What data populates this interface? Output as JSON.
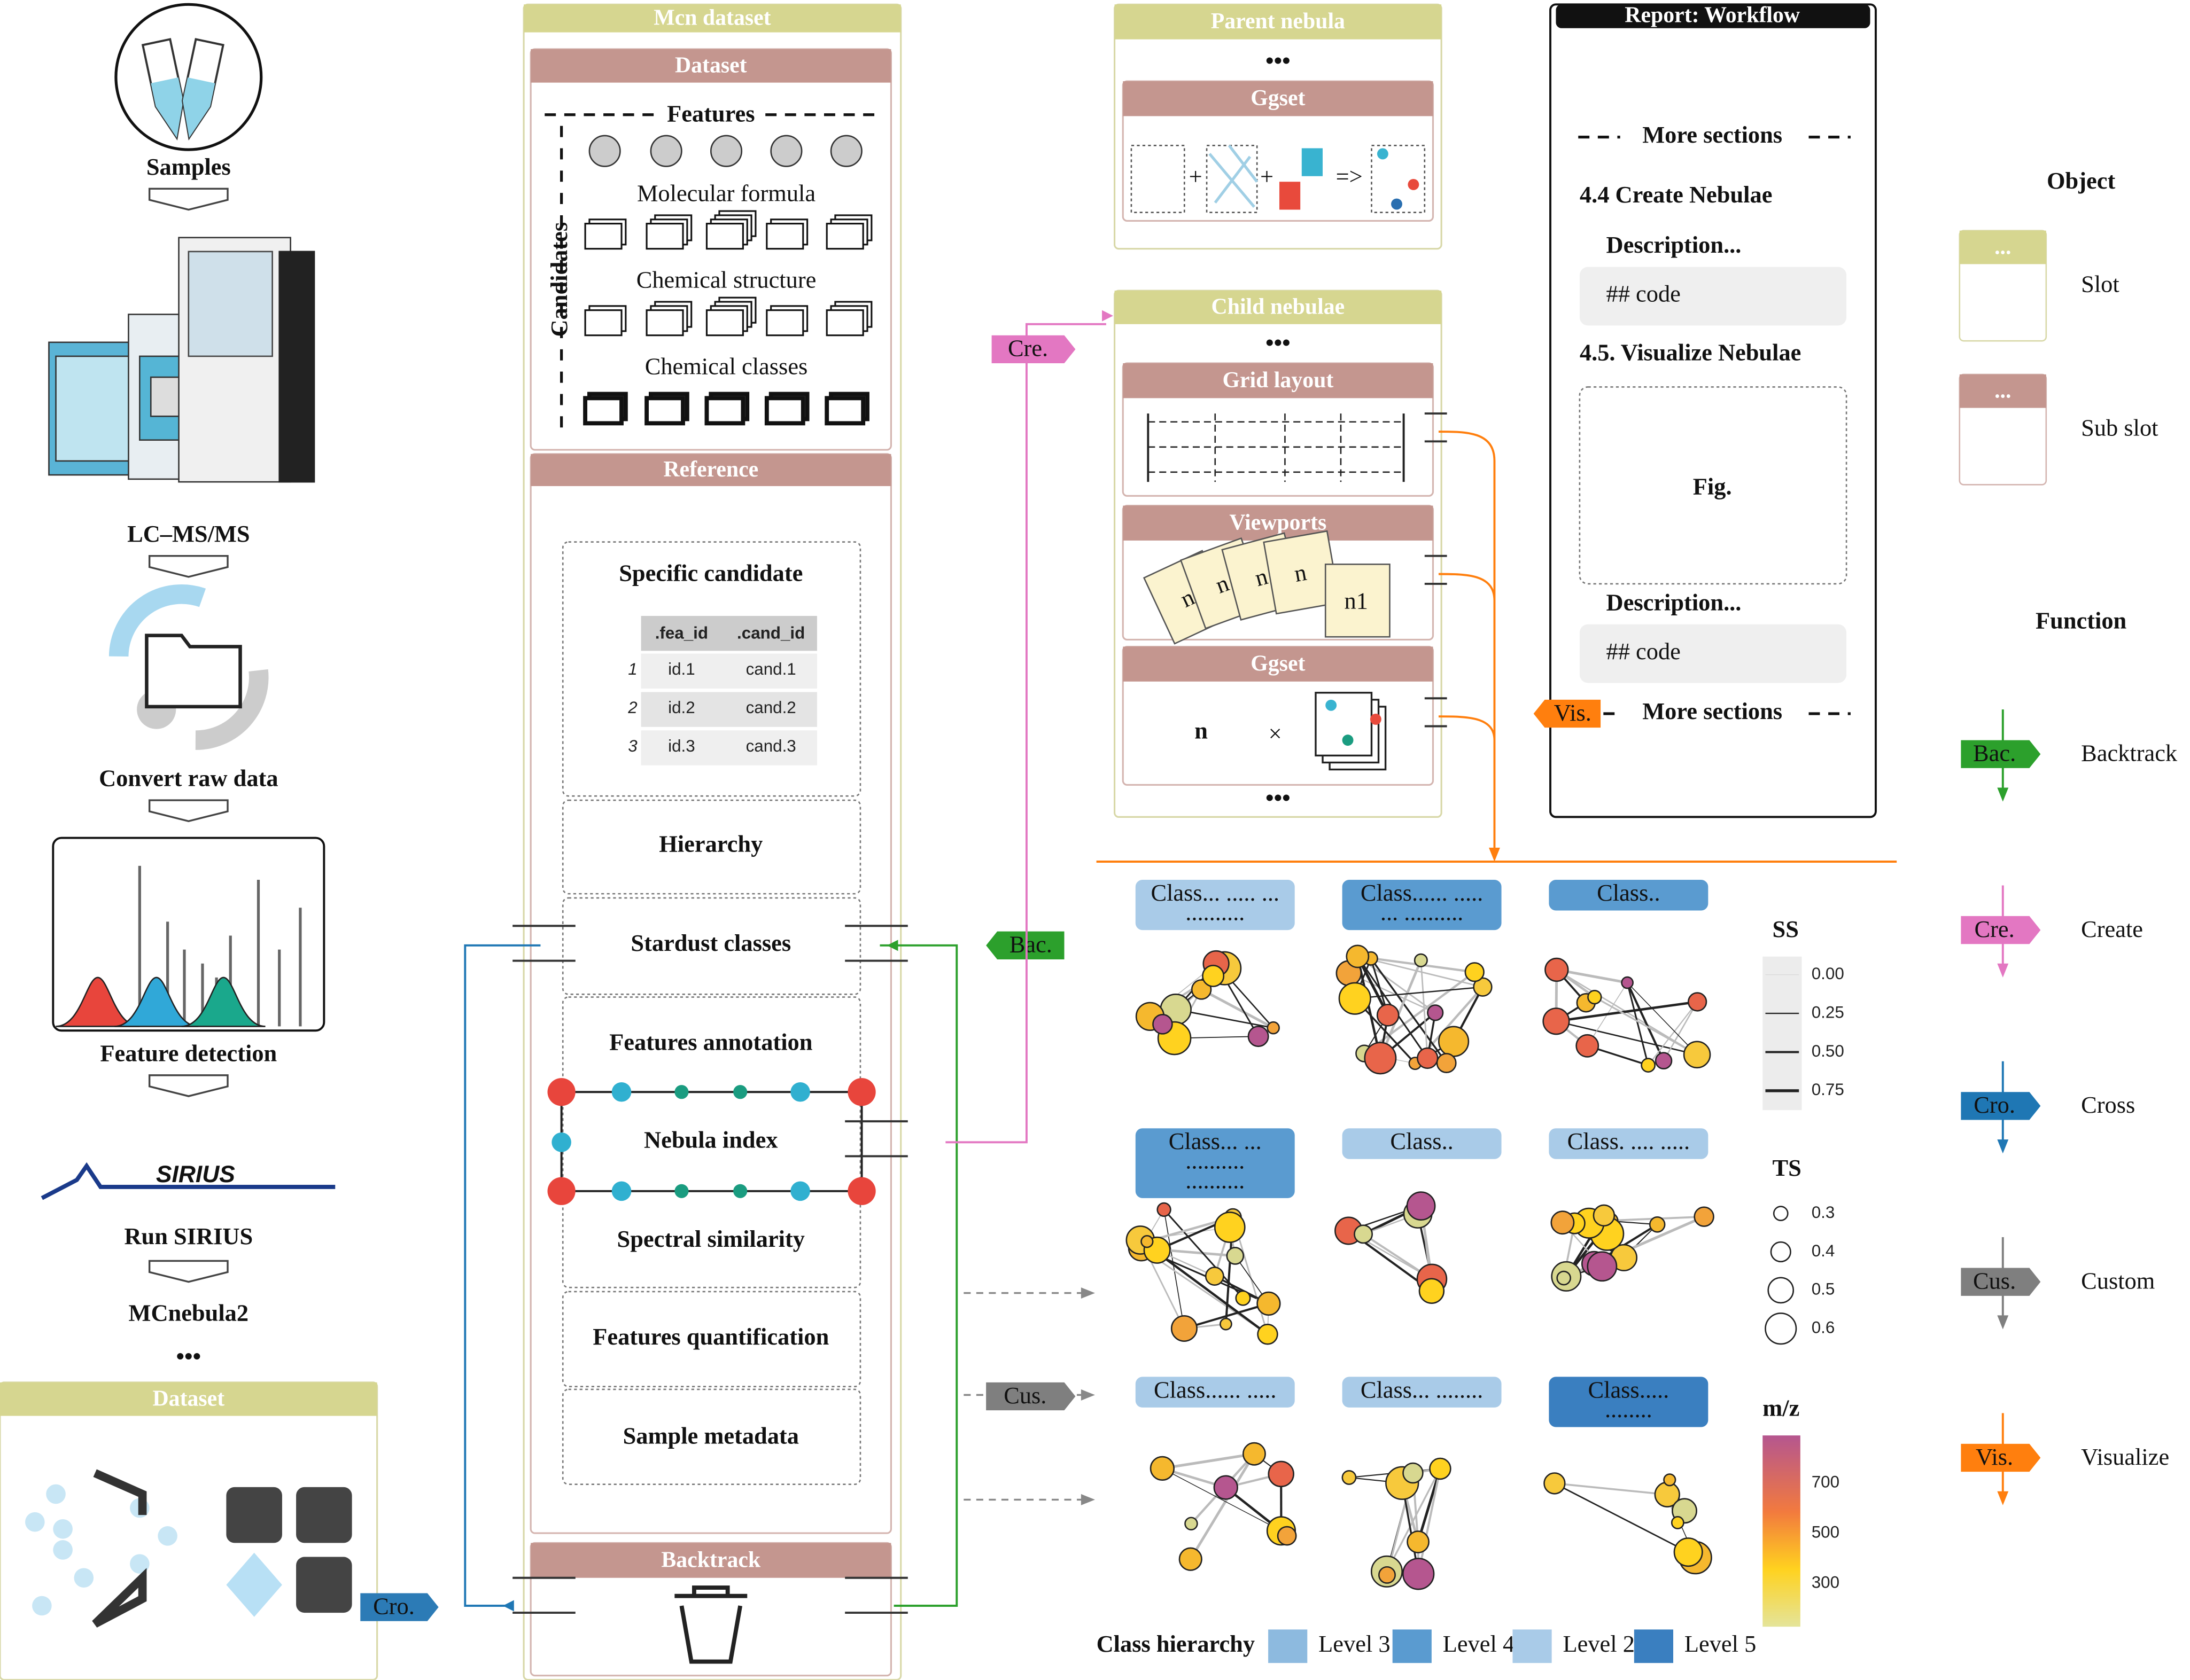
{
  "workflow": {
    "steps": [
      "Samples",
      "LC–MS/MS",
      "Convert raw data",
      "Feature detection",
      "Run SIRIUS",
      "MCnebula2",
      "•••"
    ],
    "sirius_logo": "SIRIUS",
    "dataset_title": "Dataset"
  },
  "mcn_dataset": {
    "title": "Mcn dataset",
    "dataset": "Dataset",
    "features": "Features",
    "candidates": "Candidates",
    "candidate_types": [
      "Molecular formula",
      "Chemical structure",
      "Chemical classes"
    ],
    "reference": "Reference",
    "specific_candidate": "Specific candidate",
    "table": {
      "columns": [
        ".fea_id",
        ".cand_id"
      ],
      "rows": [
        [
          "1",
          "id.1",
          "cand.1"
        ],
        [
          "2",
          "id.2",
          "cand.2"
        ],
        [
          "3",
          "id.3",
          "cand.3"
        ]
      ]
    },
    "slots": [
      "Hierarchy",
      "Stardust classes",
      "Features annotation",
      "Nebula index",
      "Spectral similarity",
      "Features quantification",
      "Sample metadata"
    ],
    "backtrack": "Backtrack"
  },
  "nebulae": {
    "parent": "Parent nebula",
    "child": "Child nebulae",
    "ggset": "Ggset",
    "grid_layout": "Grid layout",
    "viewports": "Viewports",
    "dots": "•••",
    "plus": "+",
    "arrow": "=>",
    "viewport_labels": [
      "n",
      "n",
      "n",
      "n",
      "n1"
    ],
    "n": "n",
    "times": "×"
  },
  "tags": {
    "cre": "Cre.",
    "bac": "Bac.",
    "cro": "Cro.",
    "cus": "Cus.",
    "vis": "Vis."
  },
  "report": {
    "title": "Report: Workflow",
    "more_sections": "More sections",
    "section_1": "4.4 Create Nebulae",
    "section_2": "4.5. Visualize Nebulae",
    "description": "Description...",
    "code": "## code",
    "fig": "Fig."
  },
  "legend": {
    "object_title": "Object",
    "slot_dots": "...",
    "slot": "Slot",
    "sub_slot": "Sub slot",
    "function_title": "Function",
    "functions": [
      {
        "tag": "Bac.",
        "name": "Backtrack",
        "color": "#2ca02c"
      },
      {
        "tag": "Cre.",
        "name": "Create",
        "color": "#e377c2"
      },
      {
        "tag": "Cro.",
        "name": "Cross",
        "color": "#1f77b4"
      },
      {
        "tag": "Cus.",
        "name": "Custom",
        "color": "#7f7f7f"
      },
      {
        "tag": "Vis.",
        "name": "Visualize",
        "color": "#ff7f0e"
      }
    ]
  },
  "networks": {
    "labels": [
      {
        "lines": [
          "Class... ..... ...",
          ".........."
        ],
        "level": 2
      },
      {
        "lines": [
          "Class...... .....",
          "... .........."
        ],
        "level": 1
      },
      {
        "lines": [
          "Class.."
        ],
        "level": 1
      },
      {
        "lines": [
          "Class... ...",
          "..........",
          ".........."
        ],
        "level": 1
      },
      {
        "lines": [
          "Class.."
        ],
        "level": 2
      },
      {
        "lines": [
          "Class. .... ....."
        ],
        "level": 2
      },
      {
        "lines": [
          "Class...... ....."
        ],
        "level": 2
      },
      {
        "lines": [
          "Class... ........"
        ],
        "level": 2
      },
      {
        "lines": [
          "Class.....",
          "........"
        ],
        "level": 3
      }
    ],
    "ss": {
      "title": "SS",
      "values": [
        "0.00",
        "0.25",
        "0.50",
        "0.75"
      ]
    },
    "ts": {
      "title": "TS",
      "values": [
        "0.3",
        "0.4",
        "0.5",
        "0.6"
      ]
    },
    "mz": {
      "title": "m/z",
      "ticks": [
        "700",
        "500",
        "300"
      ]
    },
    "hierarchy": {
      "title": "Class hierarchy",
      "levels": [
        {
          "name": "Level 3",
          "color": "#8dbadf"
        },
        {
          "name": "Level 4",
          "color": "#5a9bd0"
        },
        {
          "name": "Level 2",
          "color": "#a9cbe8"
        },
        {
          "name": "Level 5",
          "color": "#3a7fc0"
        }
      ]
    }
  }
}
